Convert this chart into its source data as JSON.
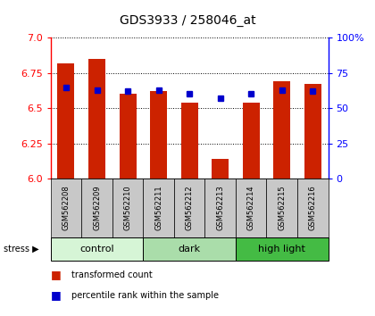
{
  "title": "GDS3933 / 258046_at",
  "samples": [
    "GSM562208",
    "GSM562209",
    "GSM562210",
    "GSM562211",
    "GSM562212",
    "GSM562213",
    "GSM562214",
    "GSM562215",
    "GSM562216"
  ],
  "red_values": [
    6.82,
    6.85,
    6.6,
    6.62,
    6.54,
    6.14,
    6.54,
    6.69,
    6.67
  ],
  "blue_values": [
    6.65,
    6.63,
    6.62,
    6.63,
    6.6,
    6.57,
    6.6,
    6.63,
    6.62
  ],
  "ymin": 6.0,
  "ymax": 7.0,
  "yright_min": 0,
  "yright_max": 100,
  "yticks_left": [
    6.0,
    6.25,
    6.5,
    6.75,
    7.0
  ],
  "yticks_right": [
    0,
    25,
    50,
    75,
    100
  ],
  "groups": [
    {
      "label": "control",
      "start": 0,
      "end": 3,
      "color": "#d6f5d6"
    },
    {
      "label": "dark",
      "start": 3,
      "end": 6,
      "color": "#aaddaa"
    },
    {
      "label": "high light",
      "start": 6,
      "end": 9,
      "color": "#44bb44"
    }
  ],
  "bar_color": "#cc2200",
  "dot_color": "#0000cc",
  "tick_label_bg": "#c8c8c8",
  "legend_red": "transformed count",
  "legend_blue": "percentile rank within the sample"
}
